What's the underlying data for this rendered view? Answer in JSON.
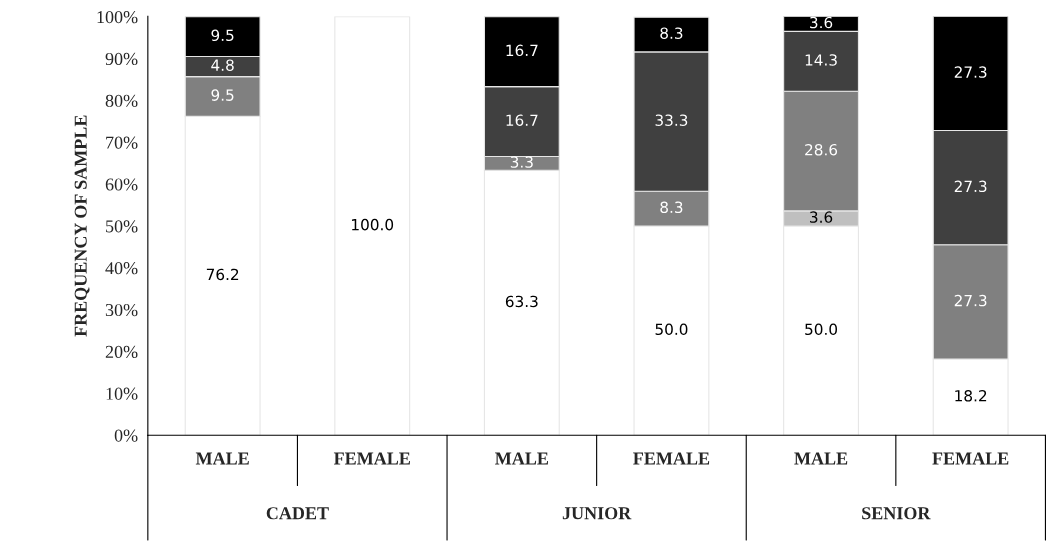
{
  "chart_data": {
    "type": "bar",
    "stacked": true,
    "ylabel": "FREQUENCY OF SAMPLE",
    "categories": [
      "MALE",
      "FEMALE",
      "MALE",
      "FEMALE",
      "MALE",
      "FEMALE"
    ],
    "annotations": [
      "CADET",
      "JUNIOR",
      "SENIOR"
    ],
    "series": [
      {
        "color": "#ffffff",
        "values": [
          76.2,
          100.0,
          63.3,
          50.0,
          50.0,
          18.2
        ],
        "value_labels": [
          "76.2",
          "100.0",
          "63.3",
          "50.0",
          "50.0",
          "18.2"
        ]
      },
      {
        "color": "#bfbfbf",
        "values": [
          null,
          null,
          null,
          null,
          3.6,
          null
        ],
        "value_labels": [
          null,
          null,
          null,
          null,
          "3.6",
          null
        ]
      },
      {
        "color": "#808080",
        "values": [
          9.5,
          null,
          3.3,
          8.3,
          28.6,
          27.3
        ],
        "value_labels": [
          "9.5",
          null,
          "3.3",
          "8.3",
          "28.6",
          "27.3"
        ]
      },
      {
        "color": "#404040",
        "values": [
          4.8,
          null,
          16.7,
          33.3,
          14.3,
          27.3
        ],
        "value_labels": [
          "4.8",
          null,
          "16.7",
          "33.3",
          "14.3",
          "27.3"
        ]
      },
      {
        "color": "#000000",
        "values": [
          9.5,
          null,
          16.7,
          8.3,
          3.6,
          27.3
        ],
        "value_labels": [
          "9.5",
          null,
          "16.7",
          "8.3",
          "3.6",
          "27.3"
        ]
      }
    ],
    "ylim": [
      0,
      100.1
    ],
    "yticks": [
      {
        "value": 0,
        "label": "0%"
      },
      {
        "value": 10,
        "label": "10%"
      },
      {
        "value": 20,
        "label": "20%"
      },
      {
        "value": 30,
        "label": "30%"
      },
      {
        "value": 40,
        "label": "40%"
      },
      {
        "value": 50,
        "label": "50%"
      },
      {
        "value": 60,
        "label": "60%"
      },
      {
        "value": 70,
        "label": "70%"
      },
      {
        "value": 80,
        "label": "80%"
      },
      {
        "value": 90,
        "label": "90%"
      },
      {
        "value": 100,
        "label": "100%"
      }
    ],
    "grid": false,
    "legend": false
  }
}
